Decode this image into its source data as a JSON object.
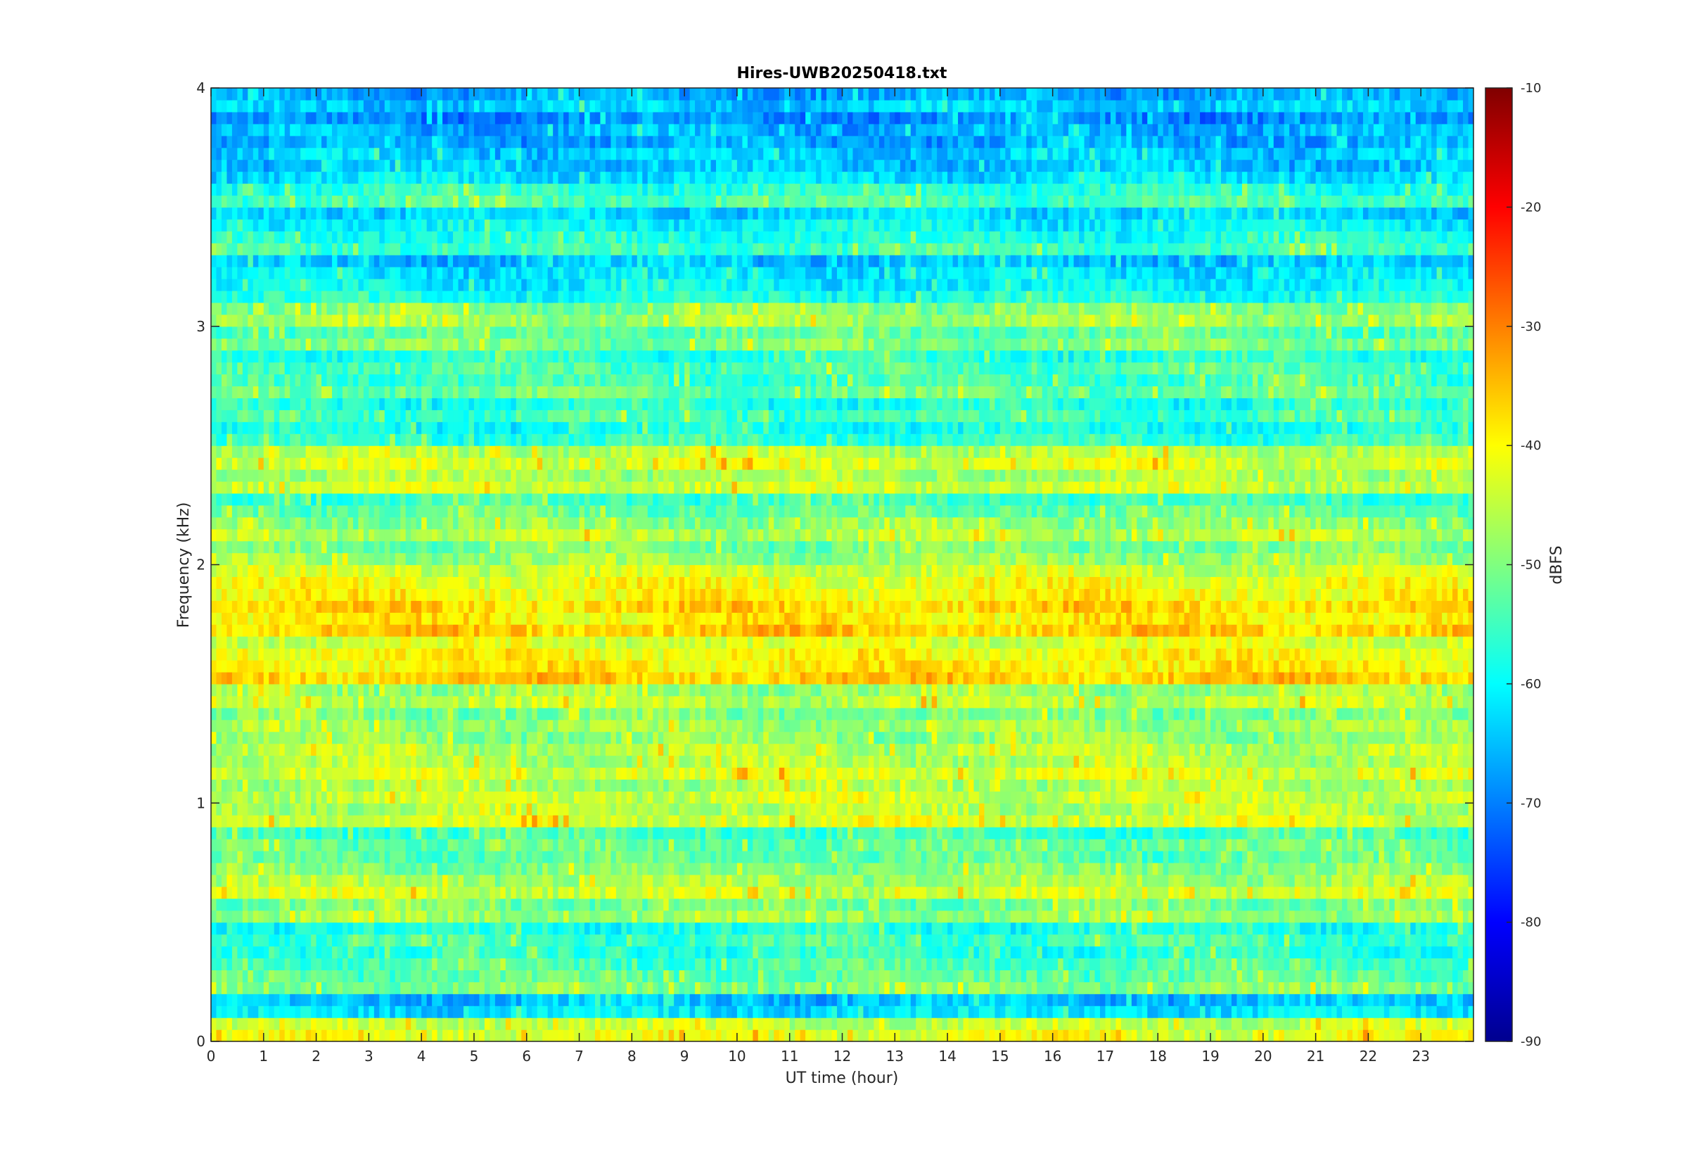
{
  "chart_data": {
    "type": "heatmap",
    "title": "Hires-UWB20250418.txt",
    "xlabel": "UT time (hour)",
    "ylabel": "Frequency (kHz)",
    "xlim": [
      0,
      24
    ],
    "ylim": [
      0,
      4
    ],
    "x_ticks": [
      "0",
      "1",
      "2",
      "3",
      "4",
      "5",
      "6",
      "7",
      "8",
      "9",
      "10",
      "11",
      "12",
      "13",
      "14",
      "15",
      "16",
      "17",
      "18",
      "19",
      "20",
      "21",
      "22",
      "23"
    ],
    "y_ticks": [
      "0",
      "1",
      "2",
      "3",
      "4"
    ],
    "colormap": "jet",
    "colorbar": {
      "label": "dBFS",
      "range": [
        -90,
        -10
      ],
      "ticks": [
        "-10",
        "-20",
        "-30",
        "-40",
        "-50",
        "-60",
        "-70",
        "-80",
        "-90"
      ]
    },
    "band_levels_dBFS": [
      {
        "f_khz": 0.05,
        "level": -42
      },
      {
        "f_khz": 0.15,
        "level": -62
      },
      {
        "f_khz": 0.25,
        "level": -50
      },
      {
        "f_khz": 0.35,
        "level": -54
      },
      {
        "f_khz": 0.45,
        "level": -55
      },
      {
        "f_khz": 0.55,
        "level": -48
      },
      {
        "f_khz": 0.65,
        "level": -44
      },
      {
        "f_khz": 0.75,
        "level": -50
      },
      {
        "f_khz": 0.85,
        "level": -52
      },
      {
        "f_khz": 0.95,
        "level": -43
      },
      {
        "f_khz": 1.05,
        "level": -44
      },
      {
        "f_khz": 1.15,
        "level": -43
      },
      {
        "f_khz": 1.25,
        "level": -46
      },
      {
        "f_khz": 1.35,
        "level": -48
      },
      {
        "f_khz": 1.45,
        "level": -45
      },
      {
        "f_khz": 1.55,
        "level": -36
      },
      {
        "f_khz": 1.65,
        "level": -40
      },
      {
        "f_khz": 1.75,
        "level": -36
      },
      {
        "f_khz": 1.85,
        "level": -37
      },
      {
        "f_khz": 1.95,
        "level": -41
      },
      {
        "f_khz": 2.05,
        "level": -48
      },
      {
        "f_khz": 2.15,
        "level": -46
      },
      {
        "f_khz": 2.25,
        "level": -52
      },
      {
        "f_khz": 2.35,
        "level": -44
      },
      {
        "f_khz": 2.45,
        "level": -43
      },
      {
        "f_khz": 2.55,
        "level": -56
      },
      {
        "f_khz": 2.65,
        "level": -55
      },
      {
        "f_khz": 2.75,
        "level": -52
      },
      {
        "f_khz": 2.85,
        "level": -54
      },
      {
        "f_khz": 2.95,
        "level": -50
      },
      {
        "f_khz": 3.05,
        "level": -47
      },
      {
        "f_khz": 3.15,
        "level": -58
      },
      {
        "f_khz": 3.25,
        "level": -62
      },
      {
        "f_khz": 3.35,
        "level": -55
      },
      {
        "f_khz": 3.45,
        "level": -60
      },
      {
        "f_khz": 3.55,
        "level": -54
      },
      {
        "f_khz": 3.65,
        "level": -62
      },
      {
        "f_khz": 3.75,
        "level": -64
      },
      {
        "f_khz": 3.85,
        "level": -66
      },
      {
        "f_khz": 3.95,
        "level": -64
      }
    ]
  }
}
